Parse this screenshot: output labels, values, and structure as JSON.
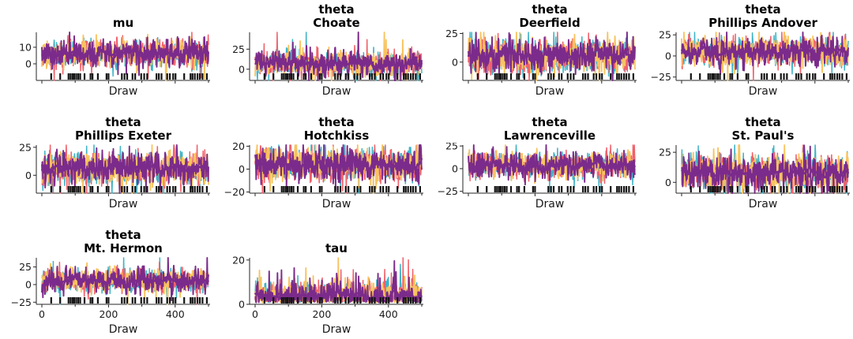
{
  "figure_type": "mcmc-trace-plot-grid",
  "labels": {
    "x_axis_label": "Draw"
  },
  "style": {
    "background": "#ffffff",
    "axis_color": "#262626",
    "tick_label_color": "#1a1a1a",
    "title_color": "#000000",
    "rug_color": "#141414",
    "chain_colors": [
      "#40b3c6",
      "#f0616b",
      "#f8c35f",
      "#7b2b8b"
    ],
    "smooth_line_color": "#7b2b8b",
    "seed": 7
  },
  "chart_data": {
    "type": "line",
    "subtype": "mcmc-trace",
    "n_chains": 4,
    "n_draws": 500,
    "xlabel": "Draw",
    "x_axis": {
      "range": [
        0,
        500
      ],
      "ticks": [
        {
          "v": 0,
          "label": "0"
        },
        {
          "v": 200,
          "label": "200"
        },
        {
          "v": 400,
          "label": "400"
        }
      ],
      "minor_ticks": [
        100,
        300,
        500
      ]
    },
    "chains": [
      {
        "name": "chain-1",
        "color": "#40b3c6"
      },
      {
        "name": "chain-2",
        "color": "#f0616b"
      },
      {
        "name": "chain-3",
        "color": "#f8c35f"
      },
      {
        "name": "chain-4",
        "color": "#7b2b8b"
      }
    ],
    "rug_draws": [
      28,
      55,
      80,
      86,
      92,
      97,
      103,
      109,
      115,
      128,
      146,
      152,
      168,
      194,
      200,
      240,
      248,
      256,
      272,
      280,
      298,
      307,
      316,
      344,
      351,
      359,
      376,
      384,
      394,
      401,
      427,
      446,
      452,
      459,
      467,
      474,
      482,
      495
    ],
    "panels": [
      {
        "id": "mu",
        "title_lines": [
          "mu"
        ],
        "row": 0,
        "col": 0,
        "ylim": [
          -10,
          19
        ],
        "yticks": [
          {
            "v": 10,
            "label": "10"
          },
          {
            "v": 0,
            "label": "0"
          }
        ],
        "center": 6,
        "spread": 4,
        "positive_only": false,
        "show_x_tick_labels": false
      },
      {
        "id": "theta-choate",
        "title_lines": [
          "theta",
          "Choate"
        ],
        "row": 0,
        "col": 1,
        "ylim": [
          -14,
          46
        ],
        "yticks": [
          {
            "v": 25,
            "label": "25"
          },
          {
            "v": 0,
            "label": "0"
          }
        ],
        "center": 7,
        "spread": 7,
        "positive_only": false,
        "show_x_tick_labels": false
      },
      {
        "id": "theta-deerfield",
        "title_lines": [
          "theta",
          "Deerfield"
        ],
        "row": 0,
        "col": 2,
        "ylim": [
          -16,
          26
        ],
        "yticks": [
          {
            "v": 25,
            "label": "25"
          },
          {
            "v": 0,
            "label": "0"
          }
        ],
        "center": 5,
        "spread": 7,
        "positive_only": false,
        "show_x_tick_labels": false
      },
      {
        "id": "theta-phillips-andover",
        "title_lines": [
          "theta",
          "Phillips Andover"
        ],
        "row": 0,
        "col": 3,
        "ylim": [
          -29,
          28
        ],
        "yticks": [
          {
            "v": 25,
            "label": "25"
          },
          {
            "v": 0,
            "label": "0"
          },
          {
            "v": -25,
            "label": "−25"
          }
        ],
        "center": 5,
        "spread": 8,
        "positive_only": false,
        "show_x_tick_labels": false
      },
      {
        "id": "theta-phillips-exeter",
        "title_lines": [
          "theta",
          "Phillips Exeter"
        ],
        "row": 1,
        "col": 0,
        "ylim": [
          -16,
          27
        ],
        "yticks": [
          {
            "v": 25,
            "label": "25"
          },
          {
            "v": 0,
            "label": "0"
          }
        ],
        "center": 6,
        "spread": 7,
        "positive_only": false,
        "show_x_tick_labels": false
      },
      {
        "id": "theta-hotchkiss",
        "title_lines": [
          "theta",
          "Hotchkiss"
        ],
        "row": 1,
        "col": 1,
        "ylim": [
          -21,
          21
        ],
        "yticks": [
          {
            "v": 20,
            "label": "20"
          },
          {
            "v": 0,
            "label": "0"
          },
          {
            "v": -20,
            "label": "−20"
          }
        ],
        "center": 4,
        "spread": 7,
        "positive_only": false,
        "show_x_tick_labels": false
      },
      {
        "id": "theta-lawrenceville",
        "title_lines": [
          "theta",
          "Lawrenceville"
        ],
        "row": 1,
        "col": 2,
        "ylim": [
          -27,
          26
        ],
        "yticks": [
          {
            "v": 25,
            "label": "25"
          },
          {
            "v": 0,
            "label": "0"
          },
          {
            "v": -25,
            "label": "−25"
          }
        ],
        "center": 4,
        "spread": 7,
        "positive_only": false,
        "show_x_tick_labels": false
      },
      {
        "id": "theta-st-pauls",
        "title_lines": [
          "theta",
          "St. Paul's"
        ],
        "row": 1,
        "col": 3,
        "ylim": [
          -9,
          31
        ],
        "yticks": [
          {
            "v": 25,
            "label": "25"
          },
          {
            "v": 0,
            "label": "0"
          }
        ],
        "center": 8,
        "spread": 7,
        "positive_only": false,
        "show_x_tick_labels": false
      },
      {
        "id": "theta-mt-hermon",
        "title_lines": [
          "theta",
          "Mt. Hermon"
        ],
        "row": 2,
        "col": 0,
        "ylim": [
          -28,
          38
        ],
        "yticks": [
          {
            "v": 25,
            "label": "25"
          },
          {
            "v": 0,
            "label": "0"
          },
          {
            "v": -25,
            "label": "−25"
          }
        ],
        "center": 6,
        "spread": 8,
        "positive_only": false,
        "show_x_tick_labels": true
      },
      {
        "id": "tau",
        "title_lines": [
          "tau"
        ],
        "row": 2,
        "col": 1,
        "ylim": [
          0,
          21
        ],
        "yticks": [
          {
            "v": 20,
            "label": "20"
          },
          {
            "v": 0,
            "label": "0"
          }
        ],
        "center": 4,
        "spread": 3.5,
        "positive_only": true,
        "show_x_tick_labels": true
      }
    ]
  }
}
